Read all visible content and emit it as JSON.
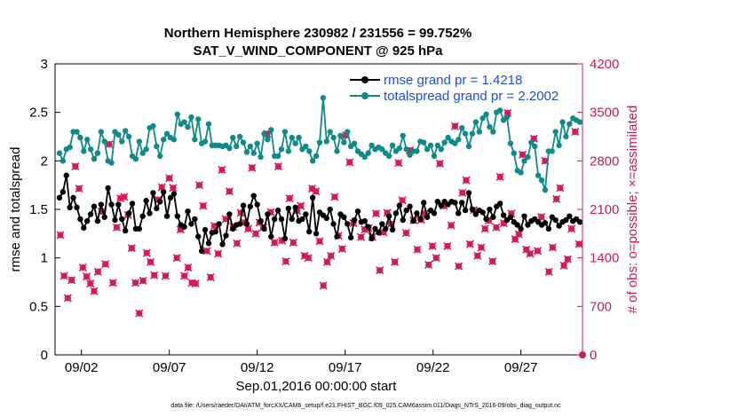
{
  "chart_data": {
    "type": "line",
    "title": "Northern Hemisphere 230982 / 231556 = 99.752%",
    "subtitle": "SAT_V_WIND_COMPONENT @ 925 hPa",
    "xlabel": "Sep.01,2016 00:00:00 start",
    "ylabel_left": "rmse and totalspread",
    "ylabel_right": "# of obs: o=possible; ×=assimilated",
    "x_ticks": [
      "09/02",
      "09/07",
      "09/12",
      "09/17",
      "09/22",
      "09/27"
    ],
    "x_range_days": [
      0.5,
      30.5
    ],
    "x_tick_days": [
      2,
      7,
      12,
      17,
      22,
      27
    ],
    "ylim_left": [
      0,
      3
    ],
    "yticks_left": [
      "0",
      "0.5",
      "1",
      "1.5",
      "2",
      "2.5",
      "3"
    ],
    "ylim_right": [
      0,
      4200
    ],
    "yticks_right": [
      "0",
      "700",
      "1400",
      "2100",
      "2800",
      "3500",
      "4200"
    ],
    "legend_position": "top-right",
    "grid": false,
    "footnote": "data file: /Users/raeder/DAI/ATM_forcXX/CAM6_setup/f.e21.FHIST_BGC.f09_025.CAM6assim.011/Diags_NTrS_2016-09/obs_diag_output.nc",
    "colors": {
      "rmse": "#000000",
      "totalspread": "#0e8a87",
      "obs": "#d6185e",
      "right_axis": "#c9195f",
      "legend_text": "#1a4fd6"
    },
    "series": [
      {
        "name": "rmse grand pr = 1.4218",
        "axis": "left",
        "y": [
          1.62,
          1.68,
          1.85,
          1.52,
          1.62,
          1.52,
          1.4,
          1.31,
          1.38,
          1.45,
          1.53,
          1.38,
          1.55,
          1.42,
          1.72,
          1.55,
          1.39,
          1.55,
          1.4,
          1.28,
          1.46,
          1.56,
          1.3,
          1.3,
          1.43,
          1.59,
          1.46,
          1.67,
          1.51,
          1.58,
          1.68,
          1.43,
          1.62,
          1.66,
          1.43,
          1.34,
          1.32,
          1.48,
          1.35,
          1.4,
          1.22,
          1.07,
          1.29,
          1.15,
          1.26,
          1.27,
          1.35,
          1.14,
          1.23,
          1.45,
          1.3,
          1.34,
          1.35,
          1.54,
          1.35,
          1.53,
          1.64,
          1.55,
          1.38,
          1.3,
          1.45,
          1.22,
          1.4,
          1.49,
          1.4,
          1.2,
          1.51,
          1.4,
          1.52,
          1.38,
          1.4,
          1.45,
          1.27,
          1.62,
          1.25,
          1.47,
          1.44,
          1.41,
          1.5,
          1.35,
          1.22,
          1.45,
          1.42,
          1.35,
          1.21,
          1.39,
          1.48,
          1.37,
          1.38,
          1.32,
          1.2,
          1.3,
          1.26,
          1.35,
          1.3,
          1.43,
          1.29,
          1.46,
          1.54,
          1.39,
          1.49,
          1.53,
          1.38,
          1.46,
          1.4,
          1.57,
          1.42,
          1.49,
          1.46,
          1.58,
          1.54,
          1.58,
          1.55,
          1.58,
          1.57,
          1.46,
          1.57,
          1.49,
          1.67,
          1.5,
          1.45,
          1.49,
          1.47,
          1.4,
          1.5,
          1.42,
          1.53,
          1.56,
          1.44,
          1.39,
          1.42,
          1.37,
          1.34,
          1.3,
          1.43,
          1.34,
          1.38,
          1.4,
          1.37,
          1.34,
          1.36,
          1.3,
          1.42,
          1.39,
          1.33,
          1.37,
          1.39,
          1.43,
          1.38,
          1.4,
          1.37
        ]
      },
      {
        "name": "totalspread grand pr = 2.2002",
        "axis": "left",
        "y": [
          2.08,
          2.0,
          2.12,
          2.14,
          2.3,
          2.3,
          2.24,
          2.1,
          2.22,
          2.12,
          2.02,
          2.08,
          2.3,
          2.2,
          2.0,
          1.98,
          2.3,
          2.27,
          2.2,
          2.31,
          2.25,
          2.05,
          2.02,
          2.2,
          2.08,
          2.12,
          2.34,
          2.36,
          2.15,
          2.05,
          2.22,
          2.28,
          2.24,
          2.22,
          2.48,
          2.38,
          2.4,
          2.35,
          2.45,
          2.22,
          2.43,
          2.18,
          2.2,
          2.38,
          2.16,
          2.16,
          2.16,
          2.15,
          2.16,
          2.13,
          2.24,
          2.15,
          2.25,
          2.19,
          2.09,
          2.15,
          2.08,
          2.18,
          2.04,
          2.28,
          2.22,
          2.32,
          2.05,
          2.05,
          2.12,
          2.3,
          2.1,
          2.24,
          2.18,
          2.24,
          2.12,
          2.15,
          2.1,
          2.0,
          2.05,
          2.19,
          2.65,
          2.2,
          2.3,
          2.24,
          2.1,
          2.26,
          2.19,
          2.3,
          2.15,
          2.18,
          2.1,
          2.07,
          2.04,
          2.08,
          2.16,
          2.12,
          2.14,
          2.12,
          2.08,
          2.05,
          2.16,
          2.1,
          2.13,
          2.26,
          2.12,
          2.06,
          2.1,
          2.1,
          2.2,
          2.19,
          2.12,
          2.16,
          2.05,
          2.16,
          2.12,
          2.19,
          2.24,
          2.2,
          2.18,
          2.22,
          2.34,
          2.28,
          2.15,
          2.28,
          2.4,
          2.3,
          2.44,
          2.48,
          2.35,
          2.3,
          2.5,
          2.52,
          2.42,
          2.45,
          2.18,
          2.08,
          1.9,
          1.88,
          2.0,
          2.04,
          2.19,
          2.15,
          1.85,
          1.8,
          1.7,
          2.1,
          2.1,
          2.3,
          2.16,
          2.4,
          2.25,
          2.38,
          2.44,
          2.42,
          2.4
        ]
      },
      {
        "name": "obs assimilated",
        "axis": "right",
        "marker": "×",
        "y": [
          1730,
          1140,
          820,
          1080,
          2720,
          2400,
          1260,
          1130,
          1030,
          920,
          1200,
          2070,
          1310,
          3040,
          1040,
          1840,
          2260,
          2280,
          2020,
          1540,
          1040,
          600,
          1070,
          1470,
          1340,
          1150,
          2240,
          2420,
          1140,
          2550,
          2410,
          1400,
          1810,
          1140,
          1260,
          1040,
          1030,
          2450,
          2150,
          1500,
          1120,
          1860,
          1460,
          2670,
          1960,
          2360,
          1850,
          1610,
          2050,
          1910,
          1820,
          2700,
          1750,
          1910,
          1840,
          3190,
          2060,
          1620,
          2720,
          1650,
          1350,
          2260,
          1620,
          2080,
          2150,
          1430,
          1400,
          2400,
          2360,
          1640,
          1000,
          1340,
          1430,
          2280,
          1720,
          1530,
          3170,
          2780,
          1900,
          3790,
          1700,
          1810,
          1830,
          1700,
          2040,
          1220,
          1770,
          2050,
          1890,
          1340,
          2770,
          2230,
          1760,
          2950,
          1940,
          1520,
          1950,
          2040,
          1300,
          1570,
          1400,
          2760,
          2150,
          1570,
          1870,
          3300,
          1280,
          2340,
          2520,
          1600,
          2090,
          1430,
          1550,
          1820,
          1940,
          1350,
          1840,
          2570,
          1900,
          3490,
          2040,
          1670,
          1740,
          2890,
          1520,
          1460,
          3120,
          1500,
          1990,
          2800,
          1200,
          1550,
          2250,
          2410,
          1290,
          1380,
          1820,
          3220,
          1600
        ]
      },
      {
        "name": "obs possible",
        "axis": "right",
        "marker": "o",
        "y": [
          0
        ]
      }
    ]
  }
}
